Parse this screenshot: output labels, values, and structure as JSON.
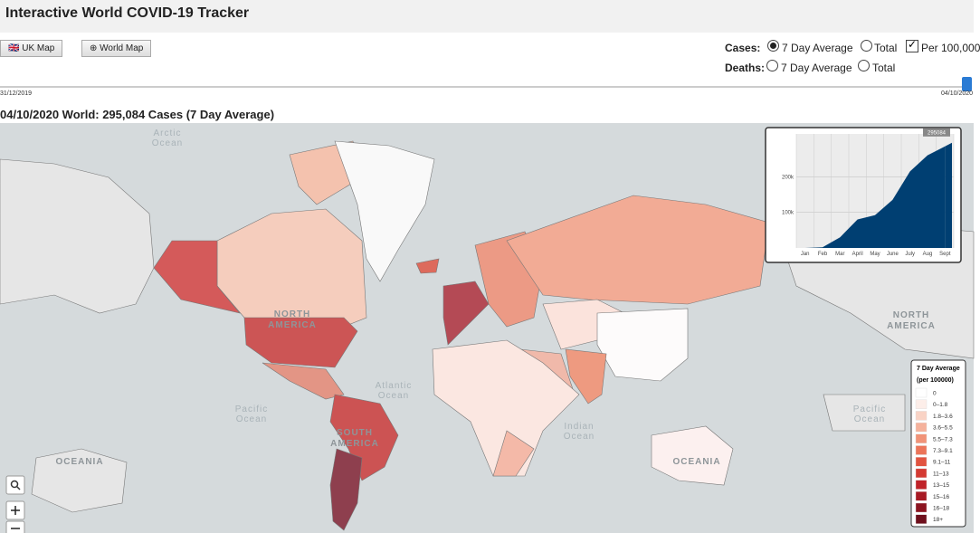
{
  "header": {
    "title": "Interactive World COVID-19 Tracker"
  },
  "controls": {
    "uk_map": "UK Map",
    "world_map": "World Map",
    "cases": {
      "label": "Cases:",
      "options": [
        "7 Day Average",
        "Total"
      ],
      "per_100000": "Per 100,000"
    },
    "deaths": {
      "label": "Deaths:",
      "options": [
        "7 Day Average",
        "Total"
      ]
    },
    "slider": {
      "start": "31/12/2019",
      "end": "04/10/2020"
    }
  },
  "headline": "04/10/2020 World: 295,084 Cases (7 Day Average)",
  "map_labels": [
    [
      "Arctic",
      "Ocean"
    ],
    [
      "NORTH",
      "AMERICA"
    ],
    [
      "Atlantic",
      "Ocean"
    ],
    [
      "Pacific",
      "Ocean"
    ],
    [
      "SOUTH",
      "AMERICA"
    ],
    [
      "Indian",
      "Ocean"
    ],
    [
      "OCEANIA"
    ],
    [
      "NORTH",
      "AMERICA"
    ],
    [
      "Pacific",
      "Ocean"
    ],
    [
      "OCEANIA"
    ]
  ],
  "chart_data": {
    "type": "area",
    "categories": [
      "Jan",
      "Feb",
      "Mar",
      "April",
      "May",
      "June",
      "July",
      "Aug",
      "Sept"
    ],
    "values": [
      0,
      2000,
      30000,
      80000,
      92000,
      135000,
      215000,
      260000,
      285000
    ],
    "last_value": 295084,
    "color": "#003f72",
    "ylim": [
      0,
      320000
    ],
    "yticks": [
      {
        "value": 100000,
        "label": "100k"
      },
      {
        "value": 200000,
        "label": "200k"
      }
    ],
    "grid": true
  },
  "legend": {
    "title": "7 Day Average",
    "subtitle": "(per 100000)",
    "items": [
      {
        "label": "0",
        "color": "#ffffff"
      },
      {
        "label": "0–1.8",
        "color": "#fdeee9"
      },
      {
        "label": "1.8–3.6",
        "color": "#f9d3c5"
      },
      {
        "label": "3.6–5.5",
        "color": "#f5b29c"
      },
      {
        "label": "5.5–7.3",
        "color": "#f19378"
      },
      {
        "label": "7.3–9.1",
        "color": "#ec7459"
      },
      {
        "label": "9.1–11",
        "color": "#e25440"
      },
      {
        "label": "11–13",
        "color": "#d43a32"
      },
      {
        "label": "13–15",
        "color": "#c02329"
      },
      {
        "label": "15–16",
        "color": "#a81a24"
      },
      {
        "label": "16–18",
        "color": "#8c1420"
      },
      {
        "label": "18+",
        "color": "#6e0f1c"
      }
    ]
  }
}
